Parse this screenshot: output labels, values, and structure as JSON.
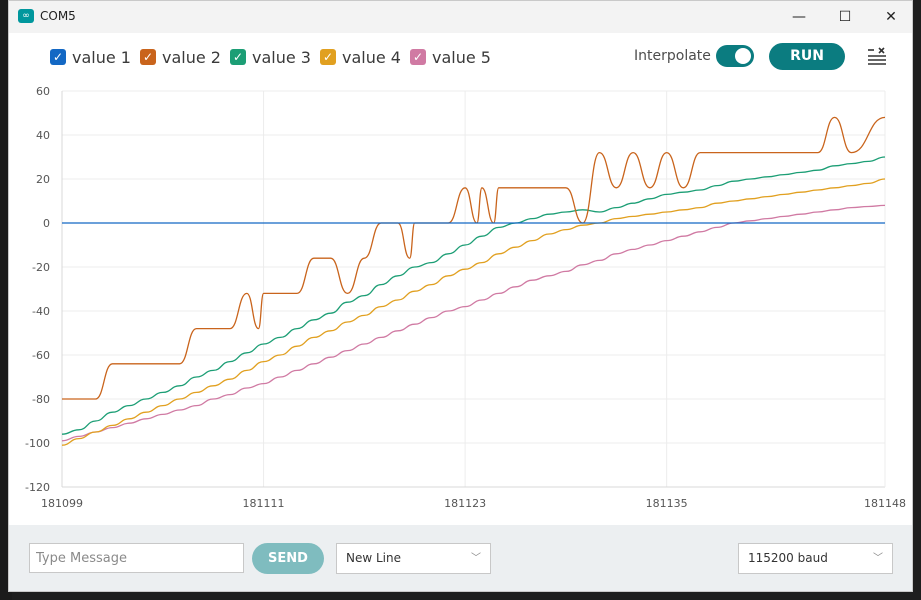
{
  "window": {
    "title": "COM5",
    "icon": "arduino-infinity-icon"
  },
  "title_controls": {
    "minimize": "—",
    "maximize": "☐",
    "close": "✕"
  },
  "legend": [
    {
      "label": "value 1",
      "color": "#1368c4",
      "checked": true
    },
    {
      "label": "value 2",
      "color": "#c9641c",
      "checked": true
    },
    {
      "label": "value 3",
      "color": "#1c9e75",
      "checked": true
    },
    {
      "label": "value 4",
      "color": "#e1a020",
      "checked": true
    },
    {
      "label": "value 5",
      "color": "#d07aa3",
      "checked": true
    }
  ],
  "toolbar": {
    "interpolate_label": "Interpolate",
    "interpolate_on": true,
    "run_label": "RUN",
    "accent": "#0b7c80"
  },
  "chart_data": {
    "type": "line",
    "x_ticks": [
      "181099",
      "181111",
      "181123",
      "181135",
      "181148"
    ],
    "y_ticks": [
      60,
      40,
      20,
      0,
      -20,
      -40,
      -60,
      -80,
      -100,
      -120
    ],
    "xlim": [
      181099,
      181148
    ],
    "ylim": [
      -120,
      60
    ],
    "grid": true,
    "series": [
      {
        "name": "value 1",
        "color": "#1368c4",
        "points": [
          [
            181099,
            0
          ],
          [
            181148,
            0
          ]
        ]
      },
      {
        "name": "value 2",
        "color": "#c9641c",
        "points": [
          [
            181099,
            -80
          ],
          [
            181100,
            -80
          ],
          [
            181101,
            -80
          ],
          [
            181102,
            -64
          ],
          [
            181103,
            -64
          ],
          [
            181104,
            -64
          ],
          [
            181105,
            -64
          ],
          [
            181106,
            -64
          ],
          [
            181107,
            -48
          ],
          [
            181108,
            -48
          ],
          [
            181109,
            -48
          ],
          [
            181110,
            -32
          ],
          [
            181110.7,
            -48
          ],
          [
            181111,
            -32
          ],
          [
            181112,
            -32
          ],
          [
            181113,
            -32
          ],
          [
            181114,
            -16
          ],
          [
            181115,
            -16
          ],
          [
            181116,
            -32
          ],
          [
            181117,
            -16
          ],
          [
            181118,
            0
          ],
          [
            181119,
            0
          ],
          [
            181119.7,
            -16
          ],
          [
            181120,
            0
          ],
          [
            181121,
            0
          ],
          [
            181122,
            0
          ],
          [
            181123,
            16
          ],
          [
            181123.7,
            0
          ],
          [
            181124,
            16
          ],
          [
            181124.7,
            0
          ],
          [
            181125,
            16
          ],
          [
            181126,
            16
          ],
          [
            181127,
            16
          ],
          [
            181128,
            16
          ],
          [
            181129,
            16
          ],
          [
            181130,
            0
          ],
          [
            181131,
            32
          ],
          [
            181132,
            16
          ],
          [
            181133,
            32
          ],
          [
            181134,
            16
          ],
          [
            181135,
            32
          ],
          [
            181136,
            16
          ],
          [
            181137,
            32
          ],
          [
            181138,
            32
          ],
          [
            181139,
            32
          ],
          [
            181140,
            32
          ],
          [
            181141,
            32
          ],
          [
            181142,
            32
          ],
          [
            181143,
            32
          ],
          [
            181144,
            32
          ],
          [
            181145,
            48
          ],
          [
            181146,
            32
          ],
          [
            181148,
            48
          ]
        ]
      },
      {
        "name": "value 3",
        "color": "#1c9e75",
        "points": [
          [
            181099,
            -96
          ],
          [
            181100,
            -94
          ],
          [
            181101,
            -90
          ],
          [
            181102,
            -86
          ],
          [
            181103,
            -83
          ],
          [
            181104,
            -80
          ],
          [
            181105,
            -77
          ],
          [
            181106,
            -74
          ],
          [
            181107,
            -70
          ],
          [
            181108,
            -67
          ],
          [
            181109,
            -63
          ],
          [
            181110,
            -59
          ],
          [
            181111,
            -55
          ],
          [
            181112,
            -52
          ],
          [
            181113,
            -48
          ],
          [
            181114,
            -44
          ],
          [
            181115,
            -41
          ],
          [
            181116,
            -36
          ],
          [
            181117,
            -33
          ],
          [
            181118,
            -28
          ],
          [
            181119,
            -24
          ],
          [
            181120,
            -20
          ],
          [
            181121,
            -18
          ],
          [
            181122,
            -14
          ],
          [
            181123,
            -10
          ],
          [
            181124,
            -6
          ],
          [
            181125,
            -2
          ],
          [
            181126,
            0
          ],
          [
            181127,
            2
          ],
          [
            181128,
            4
          ],
          [
            181129,
            5
          ],
          [
            181130,
            6
          ],
          [
            181131,
            5
          ],
          [
            181132,
            7
          ],
          [
            181133,
            9
          ],
          [
            181134,
            11
          ],
          [
            181135,
            13
          ],
          [
            181136,
            14
          ],
          [
            181137,
            15
          ],
          [
            181138,
            17
          ],
          [
            181139,
            19
          ],
          [
            181140,
            20
          ],
          [
            181141,
            21
          ],
          [
            181142,
            22
          ],
          [
            181143,
            23
          ],
          [
            181144,
            24
          ],
          [
            181145,
            26
          ],
          [
            181146,
            27
          ],
          [
            181147,
            28
          ],
          [
            181148,
            30
          ]
        ]
      },
      {
        "name": "value 4",
        "color": "#e1a020",
        "points": [
          [
            181099,
            -101
          ],
          [
            181100,
            -98
          ],
          [
            181101,
            -95
          ],
          [
            181102,
            -92
          ],
          [
            181103,
            -89
          ],
          [
            181104,
            -86
          ],
          [
            181105,
            -83
          ],
          [
            181106,
            -80
          ],
          [
            181107,
            -77
          ],
          [
            181108,
            -74
          ],
          [
            181109,
            -71
          ],
          [
            181110,
            -67
          ],
          [
            181111,
            -63
          ],
          [
            181112,
            -60
          ],
          [
            181113,
            -56
          ],
          [
            181114,
            -52
          ],
          [
            181115,
            -49
          ],
          [
            181116,
            -45
          ],
          [
            181117,
            -42
          ],
          [
            181118,
            -38
          ],
          [
            181119,
            -35
          ],
          [
            181120,
            -31
          ],
          [
            181121,
            -28
          ],
          [
            181122,
            -24
          ],
          [
            181123,
            -21
          ],
          [
            181124,
            -18
          ],
          [
            181125,
            -14
          ],
          [
            181126,
            -11
          ],
          [
            181127,
            -8
          ],
          [
            181128,
            -5
          ],
          [
            181129,
            -3
          ],
          [
            181130,
            -1
          ],
          [
            181131,
            0
          ],
          [
            181132,
            2
          ],
          [
            181133,
            3
          ],
          [
            181134,
            4
          ],
          [
            181135,
            5
          ],
          [
            181136,
            6
          ],
          [
            181137,
            7
          ],
          [
            181138,
            9
          ],
          [
            181139,
            10
          ],
          [
            181140,
            11
          ],
          [
            181141,
            12
          ],
          [
            181142,
            13
          ],
          [
            181143,
            14
          ],
          [
            181144,
            15
          ],
          [
            181145,
            16
          ],
          [
            181146,
            17
          ],
          [
            181147,
            18
          ],
          [
            181148,
            20
          ]
        ]
      },
      {
        "name": "value 5",
        "color": "#d07aa3",
        "points": [
          [
            181099,
            -99
          ],
          [
            181100,
            -97
          ],
          [
            181101,
            -95
          ],
          [
            181102,
            -93
          ],
          [
            181103,
            -91
          ],
          [
            181104,
            -89
          ],
          [
            181105,
            -87
          ],
          [
            181106,
            -85
          ],
          [
            181107,
            -83
          ],
          [
            181108,
            -80
          ],
          [
            181109,
            -78
          ],
          [
            181110,
            -75
          ],
          [
            181111,
            -73
          ],
          [
            181112,
            -70
          ],
          [
            181113,
            -67
          ],
          [
            181114,
            -64
          ],
          [
            181115,
            -61
          ],
          [
            181116,
            -58
          ],
          [
            181117,
            -55
          ],
          [
            181118,
            -52
          ],
          [
            181119,
            -49
          ],
          [
            181120,
            -46
          ],
          [
            181121,
            -43
          ],
          [
            181122,
            -40
          ],
          [
            181123,
            -38
          ],
          [
            181124,
            -35
          ],
          [
            181125,
            -32
          ],
          [
            181126,
            -29
          ],
          [
            181127,
            -26
          ],
          [
            181128,
            -24
          ],
          [
            181129,
            -22
          ],
          [
            181130,
            -19
          ],
          [
            181131,
            -17
          ],
          [
            181132,
            -14
          ],
          [
            181133,
            -12
          ],
          [
            181134,
            -10
          ],
          [
            181135,
            -8
          ],
          [
            181136,
            -6
          ],
          [
            181137,
            -4
          ],
          [
            181138,
            -2
          ],
          [
            181139,
            0
          ],
          [
            181140,
            1
          ],
          [
            181141,
            2
          ],
          [
            181142,
            3
          ],
          [
            181143,
            4
          ],
          [
            181144,
            5
          ],
          [
            181145,
            6
          ],
          [
            181146,
            7
          ],
          [
            181147,
            7.5
          ],
          [
            181148,
            8
          ]
        ]
      }
    ]
  },
  "footer": {
    "message_placeholder": "Type Message",
    "send_label": "SEND",
    "line_ending": "New Line",
    "baud": "115200 baud"
  }
}
